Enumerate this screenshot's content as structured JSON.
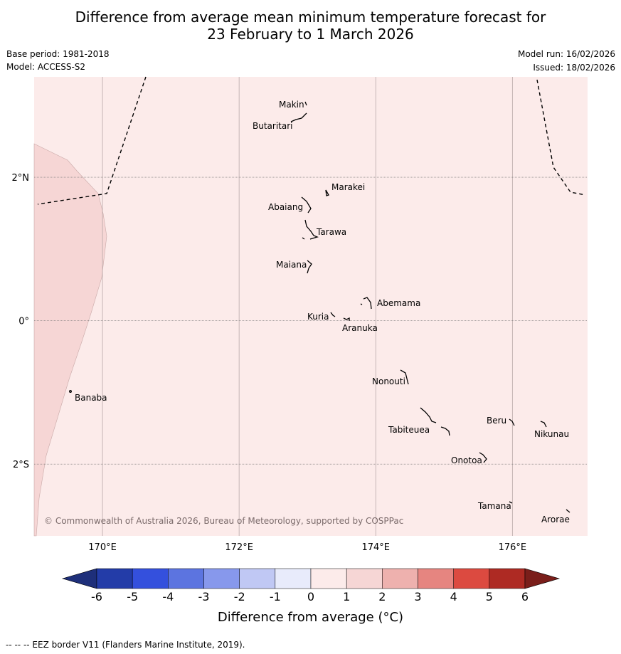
{
  "title_line1": "Difference from average mean minimum temperature forecast for",
  "title_line2": "23 February to 1 March 2026",
  "base_period": "Base period: 1981-2018",
  "model": "Model: ACCESS-S2",
  "model_run": "Model run: 16/02/2026",
  "issued": "Issued: 18/02/2026",
  "copyright": "© Commonwealth of Australia 2026, Bureau of Meteorology, supported by COSPPac",
  "colorbar_label": "Difference from average (°C)",
  "footer": "--  --  -- EEZ border V11 (Flanders Marine Institute, 2019).",
  "map": {
    "lon_range": [
      169,
      177.1
    ],
    "lat_range": [
      -3.0,
      3.4
    ],
    "lon_ticks": [
      {
        "value": 170,
        "label": "170°E"
      },
      {
        "value": 172,
        "label": "172°E"
      },
      {
        "value": 174,
        "label": "174°E"
      },
      {
        "value": 176,
        "label": "176°E"
      }
    ],
    "lat_ticks": [
      {
        "value": 2,
        "label": "2°N"
      },
      {
        "value": 0,
        "label": "0°"
      },
      {
        "value": -2,
        "label": "2°S"
      }
    ],
    "background_class": "0 to 1",
    "islands": [
      {
        "name": "Makin",
        "lon": 172.96,
        "lat": 3.18
      },
      {
        "name": "Butaritari",
        "lon": 172.86,
        "lat": 3.05
      },
      {
        "name": "Marakei",
        "lon": 173.32,
        "lat": 2.0
      },
      {
        "name": "Abaiang",
        "lon": 172.93,
        "lat": 1.83
      },
      {
        "name": "Tarawa",
        "lon": 173.03,
        "lat": 1.42
      },
      {
        "name": "Maiana",
        "lon": 173.0,
        "lat": 0.93
      },
      {
        "name": "Abemama",
        "lon": 173.88,
        "lat": 0.4
      },
      {
        "name": "Kuria",
        "lon": 173.4,
        "lat": 0.22
      },
      {
        "name": "Aranuka",
        "lon": 173.6,
        "lat": 0.17
      },
      {
        "name": "Nonouti",
        "lon": 174.4,
        "lat": -0.65
      },
      {
        "name": "Banaba",
        "lon": 169.54,
        "lat": -0.87
      },
      {
        "name": "Tabiteuea",
        "lon": 174.85,
        "lat": -1.3
      },
      {
        "name": "Beru",
        "lon": 176.0,
        "lat": -1.32
      },
      {
        "name": "Nikunau",
        "lon": 176.45,
        "lat": -1.35
      },
      {
        "name": "Onotoa",
        "lon": 175.55,
        "lat": -1.8
      },
      {
        "name": "Tamana",
        "lon": 175.98,
        "lat": -2.5
      },
      {
        "name": "Arorae",
        "lon": 176.82,
        "lat": -2.63
      }
    ]
  },
  "colorbar": {
    "ticks": [
      "-6",
      "-5",
      "-4",
      "-3",
      "-2",
      "-1",
      "0",
      "1",
      "2",
      "3",
      "4",
      "5",
      "6"
    ],
    "colors": [
      "#233ca8",
      "#3450dd",
      "#5c74e0",
      "#8798ec",
      "#c0c8f4",
      "#e8ebfb",
      "#fcebea",
      "#f6d6d5",
      "#eeb1ae",
      "#e68580",
      "#dc4a40",
      "#ae2a23"
    ],
    "under_color": "#1e2f7a",
    "over_color": "#7a1e1a"
  },
  "colors": {
    "map_fill": "#fcebea",
    "warm_region": "#f6d6d5",
    "grid": "#888888"
  }
}
